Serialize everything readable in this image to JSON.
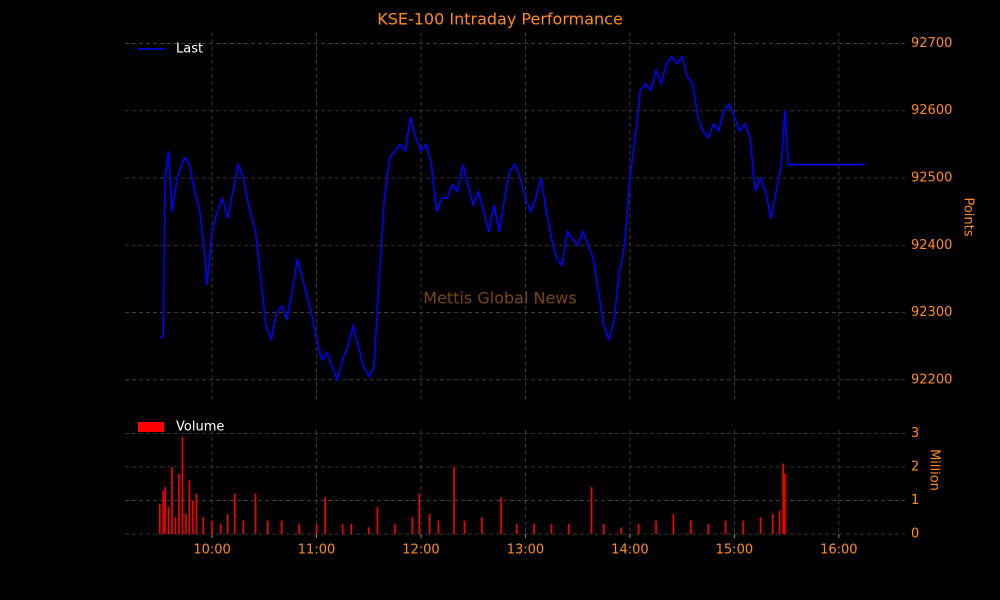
{
  "chart_data": [
    {
      "type": "line",
      "title": "KSE-100 Intraday Performance",
      "annotation": "Mettis Global News",
      "y_label": "Points",
      "legend": "upper left",
      "grid": true,
      "xlim": [
        "09:10",
        "16:38"
      ],
      "ylim": [
        92170,
        92717
      ],
      "yticks": [
        92200,
        92300,
        92400,
        92500,
        92600,
        92700
      ],
      "x": [
        "09:30",
        "09:32",
        "09:33",
        "09:35",
        "09:37",
        "09:40",
        "09:44",
        "09:47",
        "09:50",
        "09:53",
        "09:56",
        "09:57",
        "10:00",
        "10:03",
        "10:06",
        "10:09",
        "10:12",
        "10:15",
        "10:18",
        "10:21",
        "10:25",
        "10:28",
        "10:31",
        "10:34",
        "10:37",
        "10:40",
        "10:43",
        "10:46",
        "10:49",
        "10:51",
        "10:54",
        "10:57",
        "11:00",
        "11:03",
        "11:06",
        "11:09",
        "11:12",
        "11:15",
        "11:18",
        "11:21",
        "11:24",
        "11:27",
        "11:30",
        "11:33",
        "11:36",
        "11:39",
        "11:42",
        "11:45",
        "11:48",
        "11:51",
        "11:54",
        "11:57",
        "12:00",
        "12:03",
        "12:06",
        "12:09",
        "12:12",
        "12:15",
        "12:18",
        "12:21",
        "12:24",
        "12:27",
        "12:30",
        "12:33",
        "12:36",
        "12:39",
        "12:42",
        "12:45",
        "12:48",
        "12:51",
        "12:54",
        "12:57",
        "13:00",
        "13:03",
        "13:06",
        "13:09",
        "13:12",
        "13:15",
        "13:18",
        "13:21",
        "13:24",
        "13:27",
        "13:30",
        "13:33",
        "13:36",
        "13:39",
        "13:42",
        "13:45",
        "13:48",
        "13:51",
        "13:54",
        "13:57",
        "14:00",
        "14:03",
        "14:06",
        "14:09",
        "14:12",
        "14:15",
        "14:18",
        "14:21",
        "14:24",
        "14:27",
        "14:30",
        "14:33",
        "14:36",
        "14:39",
        "14:42",
        "14:45",
        "14:48",
        "14:51",
        "14:54",
        "14:57",
        "15:00",
        "15:03",
        "15:06",
        "15:09",
        "15:12",
        "15:15",
        "15:18",
        "15:21",
        "15:24",
        "15:27",
        "15:29",
        "15:31",
        "16:15"
      ],
      "series": [
        {
          "name": "Last",
          "color": "#0000ff",
          "values": [
            92262,
            92265,
            92500,
            92540,
            92450,
            92500,
            92530,
            92520,
            92480,
            92450,
            92380,
            92340,
            92420,
            92450,
            92470,
            92440,
            92480,
            92520,
            92500,
            92460,
            92420,
            92350,
            92280,
            92260,
            92300,
            92310,
            92290,
            92330,
            92380,
            92360,
            92330,
            92300,
            92260,
            92230,
            92240,
            92220,
            92200,
            92230,
            92250,
            92280,
            92250,
            92220,
            92205,
            92220,
            92350,
            92470,
            92530,
            92540,
            92550,
            92540,
            92590,
            92560,
            92540,
            92550,
            92520,
            92450,
            92470,
            92470,
            92490,
            92480,
            92520,
            92490,
            92460,
            92480,
            92450,
            92420,
            92460,
            92420,
            92470,
            92510,
            92520,
            92500,
            92470,
            92450,
            92470,
            92500,
            92450,
            92410,
            92380,
            92370,
            92420,
            92410,
            92400,
            92420,
            92400,
            92380,
            92330,
            92280,
            92260,
            92290,
            92360,
            92400,
            92500,
            92560,
            92630,
            92640,
            92630,
            92660,
            92640,
            92670,
            92680,
            92670,
            92680,
            92650,
            92640,
            92590,
            92570,
            92560,
            92580,
            92570,
            92600,
            92610,
            92590,
            92570,
            92580,
            92560,
            92480,
            92500,
            92480,
            92440,
            92480,
            92520,
            92600,
            92520,
            92520
          ]
        }
      ]
    },
    {
      "type": "bar",
      "y_label": "Million",
      "legend": "upper left",
      "grid": true,
      "xlim": [
        "09:10",
        "16:38"
      ],
      "ylim": [
        0,
        3.1
      ],
      "yticks": [
        0,
        1,
        2,
        3
      ],
      "xticks": [
        "10:00",
        "11:00",
        "12:00",
        "13:00",
        "14:00",
        "15:00",
        "16:00"
      ],
      "x": [
        "09:30",
        "09:32",
        "09:33",
        "09:35",
        "09:37",
        "09:39",
        "09:41",
        "09:43",
        "09:45",
        "09:47",
        "09:49",
        "09:51",
        "09:55",
        "10:00",
        "10:05",
        "10:09",
        "10:13",
        "10:18",
        "10:25",
        "10:32",
        "10:40",
        "10:50",
        "11:00",
        "11:05",
        "11:15",
        "11:20",
        "11:30",
        "11:35",
        "11:45",
        "11:55",
        "11:59",
        "12:05",
        "12:10",
        "12:19",
        "12:25",
        "12:35",
        "12:46",
        "12:55",
        "13:05",
        "13:15",
        "13:25",
        "13:38",
        "13:45",
        "13:55",
        "14:05",
        "14:15",
        "14:25",
        "14:35",
        "14:45",
        "14:55",
        "15:05",
        "15:15",
        "15:22",
        "15:26",
        "15:28",
        "15:29"
      ],
      "series": [
        {
          "name": "Volume",
          "color": "#ff0000",
          "values": [
            0.9,
            1.3,
            1.4,
            0.8,
            2.0,
            0.5,
            1.8,
            2.9,
            0.6,
            1.6,
            1.0,
            1.2,
            0.5,
            0.4,
            0.3,
            0.6,
            1.2,
            0.4,
            1.2,
            0.4,
            0.4,
            0.3,
            0.3,
            1.1,
            0.3,
            0.3,
            0.2,
            0.8,
            0.3,
            0.5,
            1.2,
            0.6,
            0.4,
            2.0,
            0.4,
            0.5,
            1.1,
            0.3,
            0.3,
            0.3,
            0.3,
            1.4,
            0.3,
            0.2,
            0.3,
            0.4,
            0.6,
            0.4,
            0.3,
            0.4,
            0.4,
            0.5,
            0.6,
            0.7,
            2.1,
            1.8
          ]
        }
      ]
    }
  ]
}
